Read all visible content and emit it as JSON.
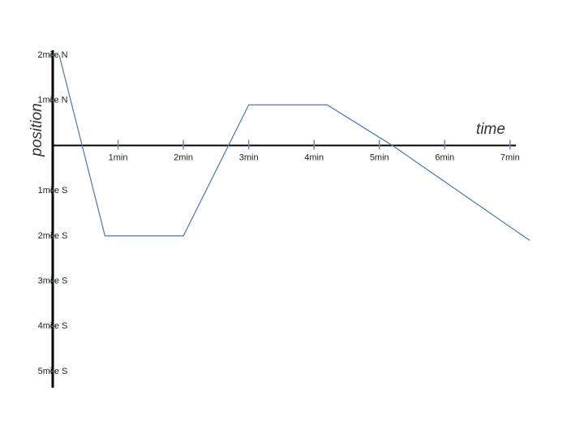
{
  "chart_data": {
    "type": "line",
    "x_label": "time",
    "y_label": "position",
    "x": [
      0.1,
      0.8,
      2,
      3,
      4.2,
      5.2,
      7.3
    ],
    "values": [
      2,
      -2,
      -2,
      0.9,
      0.9,
      0,
      -2.1
    ],
    "color": "#4a78b0",
    "xlim": [
      0,
      7.3
    ],
    "ylim": [
      -5,
      2
    ],
    "xticks": [
      {
        "value": 1,
        "label": "1min"
      },
      {
        "value": 2,
        "label": "2min"
      },
      {
        "value": 3,
        "label": "3min"
      },
      {
        "value": 4,
        "label": "4min"
      },
      {
        "value": 5,
        "label": "5min"
      },
      {
        "value": 6,
        "label": "6min"
      },
      {
        "value": 7,
        "label": "7min"
      }
    ],
    "yticks": [
      {
        "value": 2,
        "label": "2mile N"
      },
      {
        "value": 1,
        "label": "1mile N"
      },
      {
        "value": -1,
        "label": "1mile S"
      },
      {
        "value": -2,
        "label": "2mile S"
      },
      {
        "value": -3,
        "label": "3mile S"
      },
      {
        "value": -4,
        "label": "4mile S"
      },
      {
        "value": -5,
        "label": "5mile S"
      }
    ],
    "grid": false
  }
}
